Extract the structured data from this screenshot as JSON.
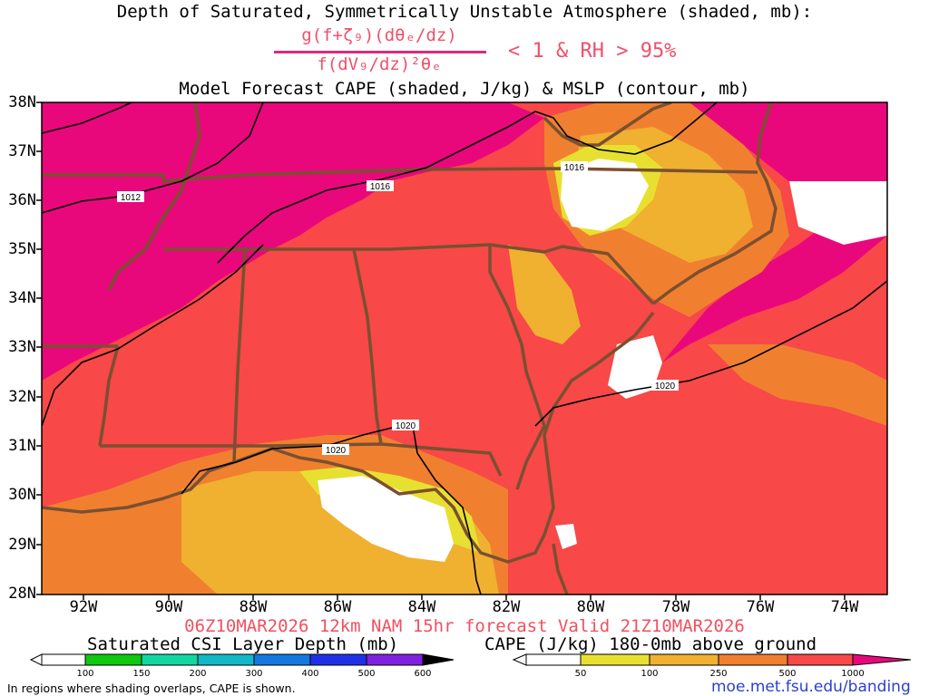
{
  "title_line1": "Depth of Saturated, Symmetrically Unstable Atmosphere (shaded, mb):",
  "fraction_numerator": "g(f+ζ₉)(dθₑ/dz)",
  "fraction_denominator": "f(dV₉/dz)²θₑ",
  "fraction_condition": "< 1 & RH > 95%",
  "title_line3": "Model Forecast CAPE (shaded, J/kg) & MSLP (contour, mb)",
  "valid_line": "06Z10MAR2026 12km NAM 15hr forecast Valid 21Z10MAR2026",
  "csi_label": "Saturated CSI Layer Depth (mb)",
  "cape_label": "CAPE (J/kg) 180-0mb above ground",
  "note": "In regions where shading overlaps, CAPE is shown.",
  "credit": "moe.met.fsu.edu/banding",
  "map": {
    "lat_labels": [
      "38N",
      "37N",
      "36N",
      "35N",
      "34N",
      "33N",
      "32N",
      "31N",
      "30N",
      "29N",
      "28N"
    ],
    "lon_labels": [
      "92W",
      "90W",
      "88W",
      "86W",
      "84W",
      "82W",
      "80W",
      "78W",
      "76W",
      "74W"
    ],
    "isobars": [
      "1012",
      "1016",
      "1016",
      "1020",
      "1020",
      "1020"
    ]
  },
  "csi_colorbar": {
    "ticks": [
      "100",
      "150",
      "200",
      "300",
      "400",
      "500",
      "600"
    ],
    "colors": [
      "#ffffff",
      "#10c810",
      "#10d8a0",
      "#10b8c8",
      "#1478e0",
      "#2030e8",
      "#8020e0",
      "#000000"
    ]
  },
  "cape_colorbar": {
    "ticks": [
      "50",
      "100",
      "250",
      "500",
      "1000"
    ],
    "colors": [
      "#ffffff",
      "#e8e030",
      "#f0b030",
      "#f08030",
      "#f84848",
      "#e8087c"
    ]
  },
  "map_colors": {
    "magenta": "#e8087c",
    "red": "#f84848",
    "orange": "#f08030",
    "gold": "#f0b030",
    "yellow": "#e8e030",
    "state_border": "#7a5030",
    "isobar": "#000000"
  }
}
